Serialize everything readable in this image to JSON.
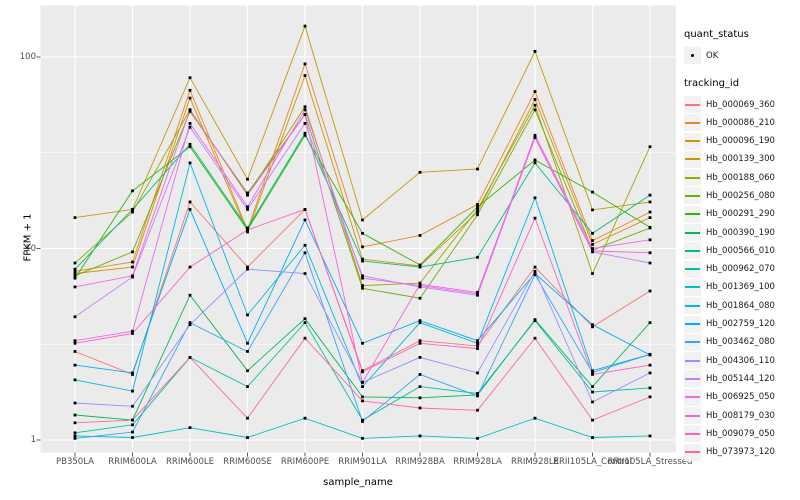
{
  "panel": {
    "bg_color": "#EBEBEB",
    "grid_color": "#FFFFFF",
    "tick_color": "#333333",
    "tick_label_color": "#4D4D4D",
    "point_color": "#000000",
    "legend_key_bg": "#F2F2F2"
  },
  "chart_data": {
    "type": "line",
    "title": "",
    "xlabel": "sample_name",
    "ylabel": "FPKM + 1",
    "y_scale": "log10",
    "y_tick_values": [
      1,
      10,
      100
    ],
    "y_tick_labels": [
      "1",
      "10",
      "100"
    ],
    "y_minor_values": [
      3.1623,
      31.623
    ],
    "ylim": [
      0.93,
      190
    ],
    "grid": true,
    "legend_position": "right",
    "point_shape": "small black square",
    "categories": [
      "PB350LA",
      "RRIM600LA",
      "RRIM600LE",
      "RRIM600SE",
      "RRIM600PE",
      "RRIM901LA",
      "RRIM928BA",
      "RRIM928LA",
      "RRIM928LE",
      "RRII105LA_Control",
      "RRII105LA_Stressed"
    ],
    "series": [
      {
        "name": "Hb_000069_360",
        "color": "#F8766D",
        "values": [
          2.9,
          2.2,
          17.5,
          8.0,
          16.0,
          2.3,
          3.3,
          3.1,
          8.0,
          3.9,
          6.0
        ]
      },
      {
        "name": "Hb_000086_210",
        "color": "#E88526",
        "values": [
          7.6,
          8.5,
          67,
          12.5,
          92,
          10.2,
          11.7,
          17.0,
          66,
          11.0,
          15.5
        ]
      },
      {
        "name": "Hb_000096_190",
        "color": "#D39200",
        "values": [
          7.4,
          8.0,
          61,
          12.2,
          80,
          8.8,
          8.1,
          15.5,
          60,
          10.5,
          14.5
        ]
      },
      {
        "name": "Hb_000139_300",
        "color": "#C49A00",
        "values": [
          14.5,
          16.0,
          78,
          23,
          145,
          14.1,
          25,
          26,
          107,
          15.9,
          17.5
        ]
      },
      {
        "name": "Hb_000188_060",
        "color": "#9DA700",
        "values": [
          8.4,
          15.5,
          53,
          19.0,
          55,
          6.4,
          6.6,
          16.0,
          56,
          7.4,
          34
        ]
      },
      {
        "name": "Hb_000256_080",
        "color": "#6FB000",
        "values": [
          7.2,
          9.6,
          52,
          19.5,
          50,
          6.2,
          5.5,
          15.0,
          53,
          9.8,
          12.8
        ]
      },
      {
        "name": "Hb_000291_290",
        "color": "#2FB600",
        "values": [
          7.0,
          20.0,
          34,
          12.5,
          39,
          12.0,
          8.2,
          16.5,
          29,
          19.7,
          12.9
        ]
      },
      {
        "name": "Hb_000390_190",
        "color": "#00BB4E",
        "values": [
          1.35,
          1.27,
          5.7,
          2.3,
          4.3,
          1.68,
          1.66,
          1.72,
          4.25,
          1.9,
          4.1
        ]
      },
      {
        "name": "Hb_000566_010",
        "color": "#00BF7D",
        "values": [
          7.8,
          16.0,
          35,
          12.8,
          40,
          8.6,
          8.0,
          9.0,
          28,
          12.0,
          19.0
        ]
      },
      {
        "name": "Hb_000962_070",
        "color": "#00C1A3",
        "values": [
          1.09,
          1.2,
          2.7,
          1.9,
          4.1,
          1.27,
          1.9,
          1.75,
          4.2,
          1.78,
          1.87
        ]
      },
      {
        "name": "Hb_001369_100",
        "color": "#00BFC4",
        "values": [
          1.05,
          1.03,
          1.16,
          1.03,
          1.3,
          1.02,
          1.05,
          1.02,
          1.3,
          1.03,
          1.05
        ]
      },
      {
        "name": "Hb_001864_080",
        "color": "#00B8E5",
        "values": [
          2.06,
          1.8,
          28,
          4.5,
          10.4,
          1.9,
          4.1,
          3.2,
          18.4,
          2.3,
          2.8
        ]
      },
      {
        "name": "Hb_002759_120",
        "color": "#00ACFC",
        "values": [
          2.46,
          2.24,
          16,
          3.2,
          14.1,
          3.2,
          4.2,
          3.3,
          7.4,
          4.0,
          2.78
        ]
      },
      {
        "name": "Hb_003462_080",
        "color": "#35A2FF",
        "values": [
          1.02,
          1.1,
          4.1,
          2.9,
          9.5,
          1.25,
          2.2,
          1.7,
          7.3,
          2.25,
          2.8
        ]
      },
      {
        "name": "Hb_004306_110",
        "color": "#9590FF",
        "values": [
          1.56,
          1.5,
          4.0,
          7.8,
          7.4,
          2.0,
          2.7,
          2.24,
          7.6,
          1.58,
          2.24
        ]
      },
      {
        "name": "Hb_005144_120",
        "color": "#C77CFF",
        "values": [
          4.4,
          7.1,
          43,
          16.0,
          45,
          7.2,
          6.3,
          5.7,
          38,
          9.6,
          8.4
        ]
      },
      {
        "name": "Hb_006925_050",
        "color": "#E76BF3",
        "values": [
          3.3,
          3.7,
          45,
          16.5,
          53,
          7.0,
          6.4,
          5.8,
          39,
          10.0,
          11.1
        ]
      },
      {
        "name": "Hb_008179_030",
        "color": "#FA62DB",
        "values": [
          6.3,
          7.2,
          53,
          19.0,
          50,
          2.0,
          6.5,
          5.9,
          38,
          9.7,
          9.5
        ]
      },
      {
        "name": "Hb_009079_050",
        "color": "#FF61C8",
        "values": [
          3.2,
          3.6,
          8.0,
          12.5,
          16.0,
          2.27,
          3.2,
          3.0,
          14.4,
          2.2,
          2.46
        ]
      },
      {
        "name": "Hb_073973_120",
        "color": "#FF689E",
        "values": [
          1.23,
          1.27,
          2.7,
          1.3,
          3.4,
          1.6,
          1.47,
          1.43,
          3.4,
          1.27,
          1.68
        ]
      }
    ],
    "legend": {
      "quant_status": {
        "title": "quant_status",
        "items": [
          {
            "label": "OK"
          }
        ]
      },
      "tracking_id": {
        "title": "tracking_id"
      }
    }
  }
}
